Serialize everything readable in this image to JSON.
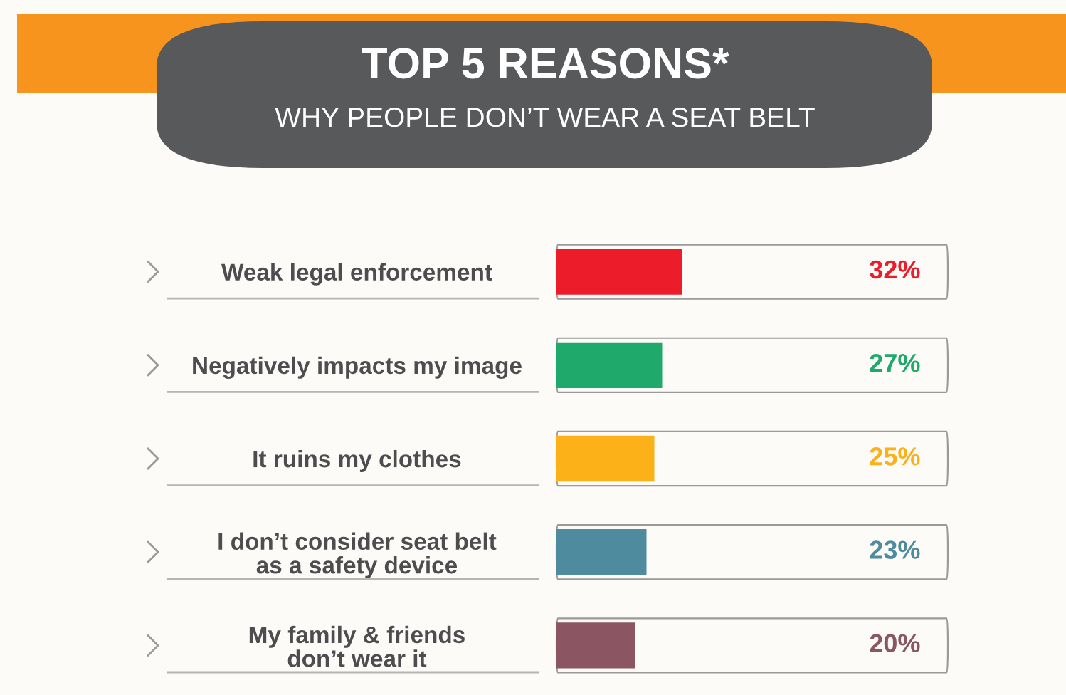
{
  "chart_data": {
    "type": "bar",
    "orientation": "horizontal",
    "title": "TOP 5 REASONS*",
    "subtitle": "WHY PEOPLE DON’T WEAR A SEAT BELT",
    "categories": [
      "Weak legal enforcement",
      "Negatively impacts my image",
      "It ruins my clothes",
      "I don’t consider seat belt\nas a safety device",
      "My family & friends\ndon’t wear it"
    ],
    "values": [
      32,
      27,
      25,
      23,
      20
    ],
    "colors": [
      "#ec1c2b",
      "#1faa6b",
      "#fbb117",
      "#4e8b9e",
      "#8b5561"
    ],
    "value_labels": [
      "32%",
      "27%",
      "25%",
      "23%",
      "20%"
    ],
    "xlim": [
      0,
      100
    ],
    "tick_labels": "y"
  }
}
